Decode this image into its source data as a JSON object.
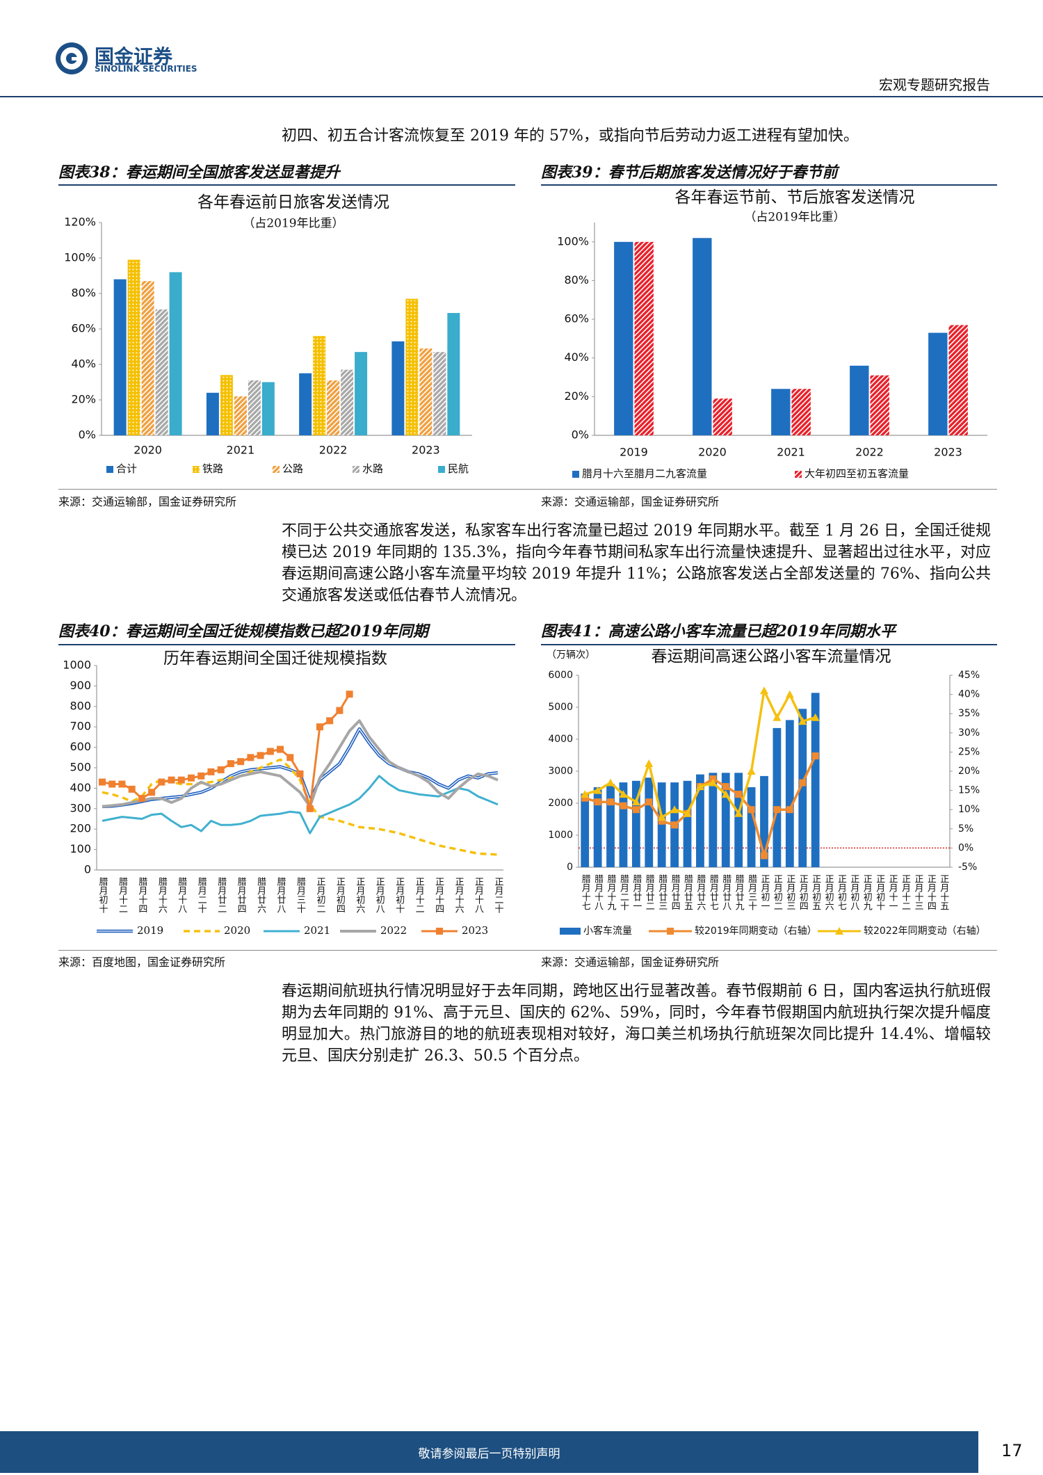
{
  "header": {
    "brand": "国金证券",
    "brand_en": "SINOLINK SECURITIES",
    "report_type": "宏观专题研究报告"
  },
  "paragraphs": [
    "初四、初五合计客流恢复至 2019 年的 57%，或指向节后劳动力返工进程有望加快。",
    "不同于公共交通旅客发送，私家客车出行客流量已超过 2019 年同期水平。截至 1 月 26 日，全国迁徙规模已达 2019 年同期的 135.3%，指向今年春节期间私家车出行流量快速提升、显著超出过往水平，对应春运期间高速公路小客车流量平均较 2019 年提升 11%；公路旅客发送占全部发送量的 76%、指向公共交通旅客发送或低估春节人流情况。",
    "春运期间航班执行情况明显好于去年同期，跨地区出行显著改善。春节假期前 6 日，国内客运执行航班假期为去年同期的 91%、高于元旦、国庆的 62%、59%，同时，今年春节假期国内航班执行架次提升幅度明显加大。热门旅游目的地的航班表现相对较好，海口美兰机场执行航班架次同比提升 14.4%、增幅较元旦、国庆分别走扩 26.3、50.5 个百分点。"
  ],
  "figures": [
    {
      "caption": "图表38：春运期间全国旅客发送显著提升",
      "source": "来源：交通运输部，国金证券研究所"
    },
    {
      "caption": "图表39：春节后期旅客发送情况好于春节前",
      "source": "来源：交通运输部，国金证券研究所"
    },
    {
      "caption": "图表40：春运期间全国迁徙规模指数已超2019年同期",
      "source": "来源：百度地图，国金证券研究所"
    },
    {
      "caption": "图表41：高速公路小客车流量已超2019年同期水平",
      "source": "来源：交通运输部，国金证券研究所"
    }
  ],
  "chart_data": [
    {
      "type": "bar",
      "title": "各年春运前日旅客发送情况",
      "subtitle": "（占2019年比重）",
      "categories": [
        "2020",
        "2021",
        "2022",
        "2023"
      ],
      "series": [
        {
          "name": "合计",
          "color": "#1f6fc0",
          "values": [
            88,
            24,
            35,
            53
          ]
        },
        {
          "name": "铁路",
          "color": "#f5c000",
          "pattern": "dots",
          "values": [
            99,
            34,
            56,
            77
          ]
        },
        {
          "name": "公路",
          "color": "#f0a040",
          "pattern": "hatch",
          "values": [
            87,
            22,
            31,
            49
          ]
        },
        {
          "name": "水路",
          "color": "#a8a8a8",
          "pattern": "hatch",
          "values": [
            71,
            31,
            37,
            47
          ]
        },
        {
          "name": "民航",
          "color": "#3aaccc",
          "values": [
            92,
            30,
            47,
            69
          ]
        }
      ],
      "ylim": [
        0,
        120
      ],
      "yticks": [
        {
          "value": 0,
          "label": "0%"
        },
        {
          "value": 20,
          "label": "20%"
        },
        {
          "value": 40,
          "label": "40%"
        },
        {
          "value": 60,
          "label": "60%"
        },
        {
          "value": 80,
          "label": "80%"
        },
        {
          "value": 100,
          "label": "100%"
        },
        {
          "value": 120,
          "label": "120%"
        }
      ],
      "grid": false,
      "legend": "bottom"
    },
    {
      "type": "bar",
      "title": "各年春运节前、节后旅客发送情况",
      "subtitle": "（占2019年比重）",
      "categories": [
        "2019",
        "2020",
        "2021",
        "2022",
        "2023"
      ],
      "series": [
        {
          "name": "腊月十六至腊月二九客流量",
          "color": "#1f6fc0",
          "values": [
            100,
            102,
            24,
            36,
            53
          ]
        },
        {
          "name": "大年初四至初五客流量",
          "color": "#e8202a",
          "pattern": "hatch",
          "values": [
            100,
            19,
            24,
            31,
            57
          ]
        }
      ],
      "ylim": [
        0,
        110
      ],
      "yticks": [
        {
          "value": 0,
          "label": "0%"
        },
        {
          "value": 20,
          "label": "20%"
        },
        {
          "value": 40,
          "label": "40%"
        },
        {
          "value": 60,
          "label": "60%"
        },
        {
          "value": 80,
          "label": "80%"
        },
        {
          "value": 100,
          "label": "100%"
        }
      ],
      "grid": false,
      "legend": "bottom"
    },
    {
      "type": "line",
      "title": "历年春运期间全国迁徙规模指数",
      "categories": [
        "腊月初十",
        null,
        "腊月十二",
        null,
        "腊月十四",
        null,
        "腊月十六",
        null,
        "腊月十八",
        null,
        "腊月二十",
        null,
        "腊月廿二",
        null,
        "腊月廿四",
        null,
        "腊月廿六",
        null,
        "腊月廿八",
        null,
        "腊月三十",
        null,
        "正月初二",
        null,
        "正月初四",
        null,
        "正月初六",
        null,
        "正月初八",
        null,
        "正月初十",
        null,
        "正月十二",
        null,
        "正月十四",
        null,
        "正月十六",
        null,
        "正月十八",
        null,
        "正月二十"
      ],
      "series": [
        {
          "name": "2019",
          "color": "#1f5fbf",
          "style": "double",
          "values": [
            310,
            312,
            318,
            325,
            335,
            345,
            350,
            355,
            360,
            370,
            380,
            400,
            430,
            460,
            480,
            490,
            495,
            500,
            505,
            490,
            470,
            340,
            440,
            480,
            520,
            600,
            690,
            620,
            560,
            520,
            500,
            480,
            470,
            450,
            420,
            400,
            440,
            460,
            450,
            470,
            475
          ]
        },
        {
          "name": "2020",
          "color": "#f5c010",
          "style": "dashed",
          "values": [
            380,
            370,
            355,
            335,
            360,
            420,
            440,
            430,
            420,
            420,
            425,
            430,
            440,
            450,
            460,
            480,
            500,
            520,
            540,
            500,
            440,
            320,
            260,
            250,
            240,
            225,
            210,
            205,
            200,
            190,
            180,
            165,
            150,
            135,
            120,
            110,
            100,
            90,
            80,
            78,
            75
          ]
        },
        {
          "name": "2021",
          "color": "#40b0d0",
          "style": "solid",
          "values": [
            240,
            250,
            260,
            255,
            250,
            270,
            275,
            240,
            210,
            220,
            190,
            240,
            220,
            220,
            225,
            240,
            265,
            270,
            275,
            285,
            280,
            180,
            260,
            280,
            300,
            320,
            350,
            400,
            460,
            420,
            390,
            380,
            370,
            365,
            360,
            380,
            400,
            390,
            360,
            340,
            320
          ]
        },
        {
          "name": "2022",
          "color": "#a6a6a6",
          "style": "solid",
          "values": [
            310,
            315,
            320,
            330,
            340,
            350,
            350,
            330,
            350,
            400,
            430,
            410,
            420,
            440,
            460,
            470,
            480,
            470,
            460,
            420,
            380,
            310,
            450,
            520,
            600,
            680,
            730,
            650,
            590,
            530,
            500,
            480,
            460,
            430,
            380,
            350,
            400,
            440,
            470,
            460,
            440
          ]
        },
        {
          "name": "2023",
          "color": "#f08030",
          "style": "solid",
          "marker": "square",
          "values": [
            430,
            420,
            420,
            395,
            350,
            380,
            430,
            440,
            440,
            450,
            460,
            480,
            490,
            520,
            530,
            550,
            560,
            580,
            590,
            550,
            470,
            300,
            700,
            730,
            780,
            860,
            null,
            null,
            null,
            null,
            null,
            null,
            null,
            null,
            null,
            null,
            null,
            null,
            null,
            null,
            null
          ]
        }
      ],
      "ylim": [
        0,
        1000
      ],
      "yticks": [
        0,
        100,
        200,
        300,
        400,
        500,
        600,
        700,
        800,
        900,
        1000
      ],
      "grid": false,
      "legend": "bottom"
    },
    {
      "type": "combo",
      "title": "春运期间高速公路小客车流量情况",
      "y_unit": "（万辆次）",
      "categories": [
        "腊月十七",
        "腊月十八",
        "腊月十九",
        "腊月二十",
        "腊月廿一",
        "腊月廿二",
        "腊月廿三",
        "腊月廿四",
        "腊月廿五",
        "腊月廿六",
        "腊月廿七",
        "腊月廿八",
        "腊月廿九",
        "腊月三十",
        "正月初一",
        "正月初二",
        "正月初三",
        "正月初四",
        "正月初五",
        "正月初六",
        "正月初七",
        "正月初八",
        "正月初九",
        "正月初十",
        "正月十一",
        "正月十二",
        "正月十三",
        "正月十四",
        "正月十五"
      ],
      "series": [
        {
          "name": "小客车流量",
          "type": "bar",
          "color": "#1f6fc0",
          "values": [
            2300,
            2500,
            2600,
            2650,
            2700,
            2800,
            2650,
            2650,
            2700,
            2900,
            2950,
            2950,
            2950,
            2500,
            2850,
            4350,
            4600,
            4950,
            5450,
            null,
            null,
            null,
            null,
            null,
            null,
            null,
            null,
            null,
            null
          ]
        },
        {
          "name": "较2019年同期变动（右轴）",
          "type": "line",
          "axis": "y2",
          "color": "#f08a30",
          "marker": "square",
          "values": [
            13,
            12,
            12,
            11,
            10,
            12,
            7,
            6,
            9,
            16,
            18,
            16,
            14,
            10,
            -2,
            10,
            10,
            17,
            24,
            null,
            null,
            null,
            null,
            null,
            null,
            null,
            null,
            null,
            null
          ]
        },
        {
          "name": "较2022年同期变动（右轴）",
          "type": "line",
          "axis": "y2",
          "color": "#f5c010",
          "marker": "triangle",
          "values": [
            14,
            15,
            17,
            14,
            12,
            22,
            8,
            10,
            9,
            16,
            17,
            14,
            9,
            20,
            41,
            34,
            40,
            33,
            34,
            null,
            null,
            null,
            null,
            null,
            null,
            null,
            null,
            null,
            null
          ]
        }
      ],
      "ylim": [
        0,
        6000
      ],
      "yticks": [
        0,
        1000,
        2000,
        3000,
        4000,
        5000,
        6000
      ],
      "y2lim": [
        -5,
        45
      ],
      "y2ticks": [
        {
          "value": -5,
          "label": "-5%"
        },
        {
          "value": 0,
          "label": "0%"
        },
        {
          "value": 5,
          "label": "5%"
        },
        {
          "value": 10,
          "label": "10%"
        },
        {
          "value": 15,
          "label": "15%"
        },
        {
          "value": 20,
          "label": "20%"
        },
        {
          "value": 25,
          "label": "25%"
        },
        {
          "value": 30,
          "label": "30%"
        },
        {
          "value": 35,
          "label": "35%"
        },
        {
          "value": 40,
          "label": "40%"
        },
        {
          "value": 45,
          "label": "45%"
        }
      ],
      "hline": {
        "axis": "y2",
        "value": 0,
        "color": "#e02020"
      },
      "grid": false,
      "legend": "bottom"
    }
  ],
  "footer": {
    "disclaimer": "敬请参阅最后一页特别声明",
    "page": 17
  }
}
